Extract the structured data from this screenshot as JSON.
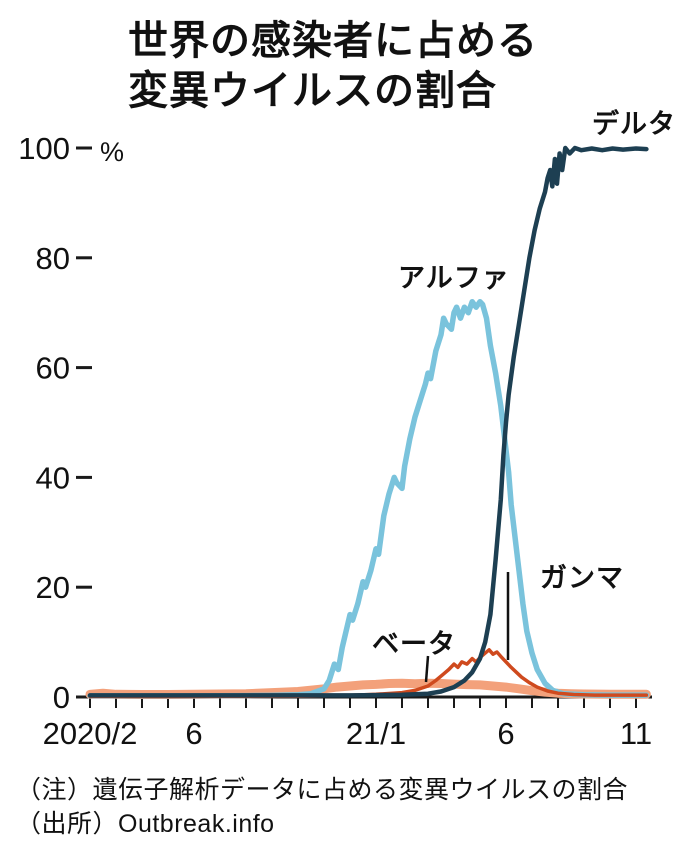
{
  "page": {
    "background": "#ffffff"
  },
  "chart_data": {
    "type": "line",
    "title": "世界の感染者に占める変異ウイルスの割合",
    "title_lines": [
      "世界の感染者に占める",
      "変異ウイルスの割合"
    ],
    "unit_label": "%",
    "ylabel": "%",
    "ylim": [
      0,
      100
    ],
    "y_ticks": [
      0,
      20,
      40,
      60,
      80,
      100
    ],
    "x_unit": "months since 2020/2",
    "x_ticks": [
      {
        "t": 0,
        "label": "2020/2"
      },
      {
        "t": 4,
        "label": "6"
      },
      {
        "t": 11,
        "label": "21/1"
      },
      {
        "t": 16,
        "label": "6"
      },
      {
        "t": 21,
        "label": "11"
      }
    ],
    "x_minor_ticks": [
      0,
      1,
      2,
      3,
      4,
      5,
      6,
      7,
      8,
      9,
      10,
      11,
      12,
      13,
      14,
      15,
      16,
      17,
      18,
      19,
      20,
      21
    ],
    "grid": false,
    "legend_position": "inline-annotations",
    "axis_color": "#1a1a1a",
    "text_color": "#111111",
    "series": [
      {
        "key": "beta",
        "label": "ベータ",
        "color": "#f3a17b",
        "stroke_width": 9,
        "points": [
          [
            0,
            0.5
          ],
          [
            0.5,
            0.7
          ],
          [
            1,
            0.5
          ],
          [
            2,
            0.45
          ],
          [
            3,
            0.45
          ],
          [
            4,
            0.5
          ],
          [
            5,
            0.55
          ],
          [
            6,
            0.6
          ],
          [
            7,
            0.8
          ],
          [
            8,
            1.0
          ],
          [
            9,
            1.5
          ],
          [
            9.5,
            1.8
          ],
          [
            10,
            2.0
          ],
          [
            10.5,
            2.2
          ],
          [
            11,
            2.3
          ],
          [
            11.5,
            2.45
          ],
          [
            12,
            2.5
          ],
          [
            12.5,
            2.4
          ],
          [
            13,
            2.5
          ],
          [
            13.5,
            2.45
          ],
          [
            14,
            2.35
          ],
          [
            14.5,
            2.25
          ],
          [
            15,
            2.2
          ],
          [
            15.5,
            2.0
          ],
          [
            16,
            1.8
          ],
          [
            16.5,
            1.5
          ],
          [
            17,
            1.15
          ],
          [
            17.5,
            0.9
          ],
          [
            18,
            0.7
          ],
          [
            18.5,
            0.6
          ],
          [
            19,
            0.55
          ],
          [
            20,
            0.5
          ],
          [
            21,
            0.5
          ],
          [
            21.4,
            0.5
          ]
        ]
      },
      {
        "key": "alpha",
        "label": "アルファ",
        "color": "#7ac3dc",
        "stroke_width": 5.5,
        "points": [
          [
            0,
            0.2
          ],
          [
            2,
            0.2
          ],
          [
            4,
            0.2
          ],
          [
            6,
            0.25
          ],
          [
            7,
            0.3
          ],
          [
            8,
            0.4
          ],
          [
            8.5,
            0.6
          ],
          [
            9,
            1.5
          ],
          [
            9.2,
            3
          ],
          [
            9.4,
            6
          ],
          [
            9.55,
            5
          ],
          [
            9.7,
            9
          ],
          [
            9.9,
            13
          ],
          [
            10,
            15
          ],
          [
            10.1,
            14
          ],
          [
            10.3,
            17
          ],
          [
            10.5,
            21
          ],
          [
            10.6,
            20
          ],
          [
            10.8,
            23
          ],
          [
            11,
            27
          ],
          [
            11.1,
            26
          ],
          [
            11.3,
            33
          ],
          [
            11.5,
            37
          ],
          [
            11.7,
            40
          ],
          [
            11.8,
            39
          ],
          [
            12,
            38
          ],
          [
            12.1,
            42
          ],
          [
            12.3,
            47
          ],
          [
            12.5,
            51
          ],
          [
            12.7,
            54
          ],
          [
            12.9,
            57
          ],
          [
            13,
            59
          ],
          [
            13.1,
            58
          ],
          [
            13.3,
            63
          ],
          [
            13.5,
            66
          ],
          [
            13.6,
            69
          ],
          [
            13.7,
            68
          ],
          [
            13.9,
            67
          ],
          [
            14,
            70
          ],
          [
            14.1,
            71
          ],
          [
            14.25,
            69
          ],
          [
            14.4,
            71
          ],
          [
            14.55,
            70
          ],
          [
            14.7,
            72
          ],
          [
            14.85,
            71
          ],
          [
            15,
            72
          ],
          [
            15.1,
            71.5
          ],
          [
            15.25,
            69
          ],
          [
            15.4,
            64
          ],
          [
            15.6,
            59
          ],
          [
            15.8,
            53
          ],
          [
            15.9,
            49
          ],
          [
            16,
            45
          ],
          [
            16.1,
            41
          ],
          [
            16.2,
            35
          ],
          [
            16.35,
            29
          ],
          [
            16.5,
            23
          ],
          [
            16.65,
            17
          ],
          [
            16.8,
            12
          ],
          [
            17,
            8
          ],
          [
            17.2,
            5
          ],
          [
            17.5,
            2.5
          ],
          [
            17.8,
            1.2
          ],
          [
            18.2,
            0.6
          ],
          [
            19,
            0.4
          ],
          [
            20,
            0.35
          ],
          [
            21,
            0.35
          ],
          [
            21.4,
            0.35
          ]
        ]
      },
      {
        "key": "gamma",
        "label": "ガンマ",
        "color": "#cf4a1e",
        "stroke_width": 3.5,
        "points": [
          [
            0,
            0.1
          ],
          [
            4,
            0.1
          ],
          [
            8,
            0.15
          ],
          [
            10,
            0.3
          ],
          [
            11,
            0.5
          ],
          [
            12,
            0.8
          ],
          [
            12.5,
            1.2
          ],
          [
            13,
            2
          ],
          [
            13.3,
            3
          ],
          [
            13.6,
            4.2
          ],
          [
            13.8,
            5
          ],
          [
            14,
            6
          ],
          [
            14.15,
            5.4
          ],
          [
            14.3,
            6.4
          ],
          [
            14.5,
            6
          ],
          [
            14.7,
            7
          ],
          [
            14.85,
            6.4
          ],
          [
            15,
            7.2
          ],
          [
            15.2,
            8
          ],
          [
            15.35,
            8.6
          ],
          [
            15.5,
            7.8
          ],
          [
            15.65,
            8.2
          ],
          [
            15.8,
            7.4
          ],
          [
            16,
            6.4
          ],
          [
            16.2,
            5.4
          ],
          [
            16.4,
            4.5
          ],
          [
            16.6,
            3.6
          ],
          [
            16.9,
            2.6
          ],
          [
            17.2,
            1.8
          ],
          [
            17.6,
            1.1
          ],
          [
            18,
            0.7
          ],
          [
            18.6,
            0.45
          ],
          [
            19.4,
            0.35
          ],
          [
            20.2,
            0.35
          ],
          [
            21,
            0.35
          ],
          [
            21.4,
            0.35
          ]
        ]
      },
      {
        "key": "delta",
        "label": "デルタ",
        "color": "#1d3f52",
        "stroke_width": 4.5,
        "points": [
          [
            0,
            0.3
          ],
          [
            2,
            0.3
          ],
          [
            4,
            0.3
          ],
          [
            6,
            0.3
          ],
          [
            8,
            0.3
          ],
          [
            10,
            0.3
          ],
          [
            11,
            0.35
          ],
          [
            12,
            0.4
          ],
          [
            13,
            0.6
          ],
          [
            13.5,
            1
          ],
          [
            14,
            1.8
          ],
          [
            14.4,
            3
          ],
          [
            14.7,
            4.5
          ],
          [
            15,
            7
          ],
          [
            15.2,
            10
          ],
          [
            15.4,
            15
          ],
          [
            15.6,
            25
          ],
          [
            15.8,
            36
          ],
          [
            15.9,
            44
          ],
          [
            16,
            50
          ],
          [
            16.1,
            55
          ],
          [
            16.3,
            62
          ],
          [
            16.5,
            68
          ],
          [
            16.7,
            74
          ],
          [
            16.9,
            80
          ],
          [
            17.1,
            85
          ],
          [
            17.3,
            89
          ],
          [
            17.5,
            92
          ],
          [
            17.6,
            94.5
          ],
          [
            17.7,
            96
          ],
          [
            17.78,
            93
          ],
          [
            17.88,
            98
          ],
          [
            17.96,
            93.5
          ],
          [
            18.06,
            99
          ],
          [
            18.16,
            96
          ],
          [
            18.28,
            100
          ],
          [
            18.45,
            99
          ],
          [
            18.65,
            100
          ],
          [
            18.9,
            99.6
          ],
          [
            19.3,
            99.9
          ],
          [
            19.7,
            99.6
          ],
          [
            20.1,
            99.9
          ],
          [
            20.5,
            99.7
          ],
          [
            21,
            99.9
          ],
          [
            21.4,
            99.8
          ]
        ]
      }
    ]
  },
  "footnotes": {
    "note": "（注）遺伝子解析データに占める変異ウイルスの割合",
    "source": "（出所）Outbreak.info"
  }
}
